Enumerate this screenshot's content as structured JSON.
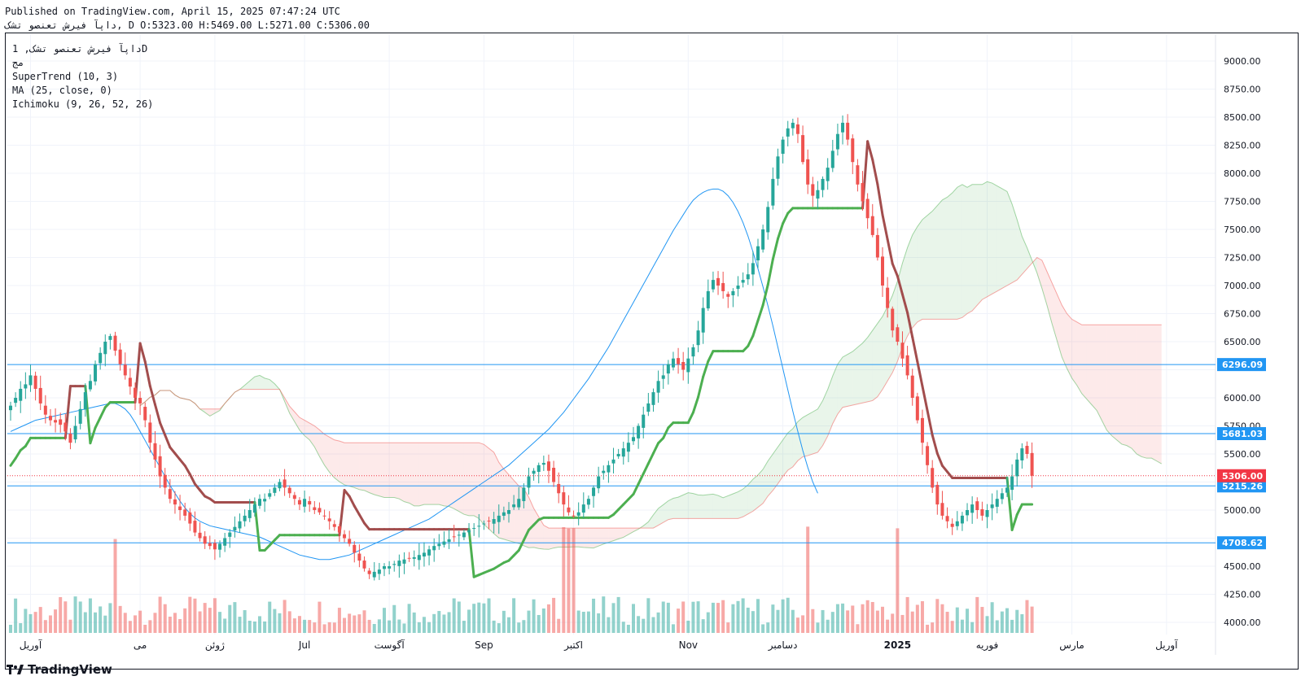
{
  "header": {
    "published": "Published on TradingView.com, April 15, 2025 07:47:24 UTC",
    "ohlc": "داپآ فیرش تعنصو تشک, D O:5323.00 H:5469.00 L:5271.00 C:5306.00"
  },
  "legend": {
    "symbol": "داپآ فیرش تعنصو تشک, 1D",
    "exchange": "مج",
    "indicator1": "SuperTrend (10, 3)",
    "indicator2": "MA (25, close, 0)",
    "indicator3": "Ichimoku (9, 26, 52, 26)"
  },
  "brand": "TradingView",
  "colors": {
    "up": "#26a69a",
    "down": "#ef5350",
    "supertrend_up": "#4caf50",
    "supertrend_down": "#a24d4d",
    "ma": "#2196f3",
    "hline": "#2196f3",
    "last_price": "#f23645",
    "cloud_green": "#4caf50",
    "cloud_red": "#ef5350"
  },
  "chart_data": {
    "type": "candlestick",
    "title": "",
    "ylim": [
      3850,
      9250
    ],
    "y_ticks": [
      4000,
      4250,
      4500,
      4750,
      5000,
      5250,
      5500,
      5750,
      6000,
      6250,
      6500,
      6750,
      7000,
      7250,
      7500,
      7750,
      8000,
      8250,
      8500,
      8750,
      9000
    ],
    "y_tick_labels": [
      "4000.00",
      "4250.00",
      "4500.00",
      "",
      "5000.00",
      "5250.00",
      "5500.00",
      "5750.00",
      "6000.00",
      "",
      "6500.00",
      "6750.00",
      "7000.00",
      "7250.00",
      "7500.00",
      "7750.00",
      "8000.00",
      "8250.00",
      "8500.00",
      "8750.00",
      "9000.00"
    ],
    "x_labels": [
      {
        "label": "آوریل",
        "idx": 4
      },
      {
        "label": "می",
        "idx": 26
      },
      {
        "label": "ژوئن",
        "idx": 41
      },
      {
        "label": "Jul",
        "idx": 59
      },
      {
        "label": "آگوست",
        "idx": 76
      },
      {
        "label": "Sep",
        "idx": 95
      },
      {
        "label": "اکتبر",
        "idx": 113
      },
      {
        "label": "Nov",
        "idx": 136
      },
      {
        "label": "دسامبر",
        "idx": 155
      },
      {
        "label": "2025",
        "idx": 178
      },
      {
        "label": "فوریه",
        "idx": 196
      },
      {
        "label": "مارس",
        "idx": 213
      },
      {
        "label": "آوریل",
        "idx": 232
      }
    ],
    "horizontal_lines": [
      {
        "value": 6296.09,
        "label": "6296.09"
      },
      {
        "value": 5681.03,
        "label": "5681.03"
      },
      {
        "value": 5215.26,
        "label": "5215.26"
      },
      {
        "value": 4708.62,
        "label": "4708.62"
      }
    ],
    "last_price": {
      "value": 5306.0,
      "label": "5306.00"
    },
    "close": [
      5930,
      6000,
      6080,
      6120,
      6200,
      6080,
      5950,
      5850,
      5800,
      5780,
      5760,
      5700,
      5600,
      5750,
      5900,
      6050,
      6150,
      6300,
      6400,
      6500,
      6550,
      6420,
      6300,
      6200,
      6100,
      6000,
      5950,
      5800,
      5600,
      5450,
      5300,
      5200,
      5100,
      5050,
      5000,
      4950,
      4880,
      4800,
      4750,
      4700,
      4680,
      4650,
      4700,
      4750,
      4800,
      4850,
      4900,
      4950,
      5000,
      5050,
      5100,
      5100,
      5150,
      5200,
      5250,
      5200,
      5150,
      5100,
      5050,
      5100,
      5050,
      5000,
      4980,
      4950,
      4900,
      4850,
      4800,
      4750,
      4700,
      4620,
      4550,
      4480,
      4430,
      4450,
      4470,
      4500,
      4500,
      4520,
      4550,
      4560,
      4570,
      4580,
      4600,
      4620,
      4650,
      4680,
      4700,
      4720,
      4740,
      4760,
      4780,
      4800,
      4820,
      4840,
      4860,
      4880,
      4900,
      4920,
      4950,
      4980,
      5000,
      5050,
      5100,
      5200,
      5300,
      5350,
      5400,
      5420,
      5350,
      5250,
      5150,
      5050,
      4980,
      4950,
      4980,
      5050,
      5100,
      5200,
      5300,
      5350,
      5400,
      5450,
      5500,
      5550,
      5600,
      5650,
      5750,
      5850,
      5950,
      6050,
      6150,
      6200,
      6300,
      6350,
      6300,
      6250,
      6350,
      6450,
      6600,
      6800,
      6950,
      7050,
      7000,
      6950,
      6900,
      6950,
      7000,
      7050,
      7100,
      7200,
      7350,
      7500,
      7700,
      7950,
      8150,
      8300,
      8400,
      8450,
      8350,
      8100,
      7900,
      7800,
      7850,
      7950,
      8050,
      8200,
      8350,
      8450,
      8300,
      8100,
      7900,
      7750,
      7600,
      7450,
      7250,
      7000,
      6800,
      6600,
      6500,
      6350,
      6200,
      6000,
      5800,
      5600,
      5400,
      5200,
      5050,
      4950,
      4900,
      4850,
      4900,
      4950,
      5000,
      5050,
      5000,
      4950,
      5000,
      5050,
      5100,
      5150,
      5200,
      5300,
      5450,
      5550,
      5500,
      5306
    ],
    "ma_25": [
      5700,
      5720,
      5740,
      5760,
      5780,
      5800,
      5810,
      5820,
      5830,
      5840,
      5850,
      5860,
      5870,
      5880,
      5890,
      5900,
      5910,
      5920,
      5930,
      5940,
      5950,
      5950,
      5930,
      5900,
      5850,
      5780,
      5700,
      5620,
      5540,
      5460,
      5380,
      5300,
      5220,
      5150,
      5080,
      5020,
      4970,
      4930,
      4900,
      4880,
      4860,
      4850,
      4840,
      4830,
      4820,
      4810,
      4800,
      4790,
      4780,
      4770,
      4760,
      4740,
      4720,
      4700,
      4680,
      4660,
      4640,
      4620,
      4600,
      4590,
      4580,
      4570,
      4560,
      4560,
      4560,
      4570,
      4580,
      4590,
      4600,
      4620,
      4640,
      4660,
      4680,
      4700,
      4720,
      4740,
      4760,
      4780,
      4800,
      4820,
      4840,
      4860,
      4880,
      4900,
      4920,
      4950,
      4980,
      5010,
      5040,
      5070,
      5100,
      5130,
      5160,
      5190,
      5220,
      5250,
      5280,
      5310,
      5340,
      5370,
      5400,
      5440,
      5480,
      5520,
      5560,
      5600,
      5640,
      5680,
      5720,
      5770,
      5820,
      5870,
      5930,
      5990,
      6050,
      6110,
      6170,
      6240,
      6310,
      6380,
      6450,
      6530,
      6610,
      6690,
      6770,
      6850,
      6930,
      7010,
      7090,
      7170,
      7250,
      7330,
      7410,
      7490,
      7560,
      7630,
      7700,
      7760,
      7800,
      7830,
      7850,
      7860,
      7860,
      7840,
      7800,
      7740,
      7660,
      7560,
      7440,
      7300,
      7150,
      6990,
      6820,
      6640,
      6450,
      6260,
      6070,
      5880,
      5700,
      5530,
      5380,
      5250,
      5150
    ],
    "note": "Daily candlestick chart with SuperTrend, 25-period MA and Ichimoku cloud; volume histogram at bottom."
  }
}
